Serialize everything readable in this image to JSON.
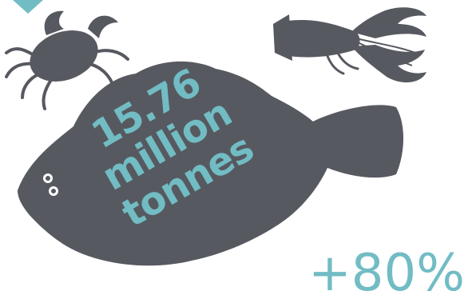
{
  "headline": {
    "line1": "15.76",
    "line2": "million",
    "line3": "tonnes"
  },
  "change": "+80%",
  "colors": {
    "silhouette": "#575960",
    "accent": "#72bcc4",
    "background": "#ffffff"
  },
  "icons": [
    "crab-icon",
    "lobster-icon",
    "flatfish-icon",
    "triangle-marker-icon"
  ]
}
